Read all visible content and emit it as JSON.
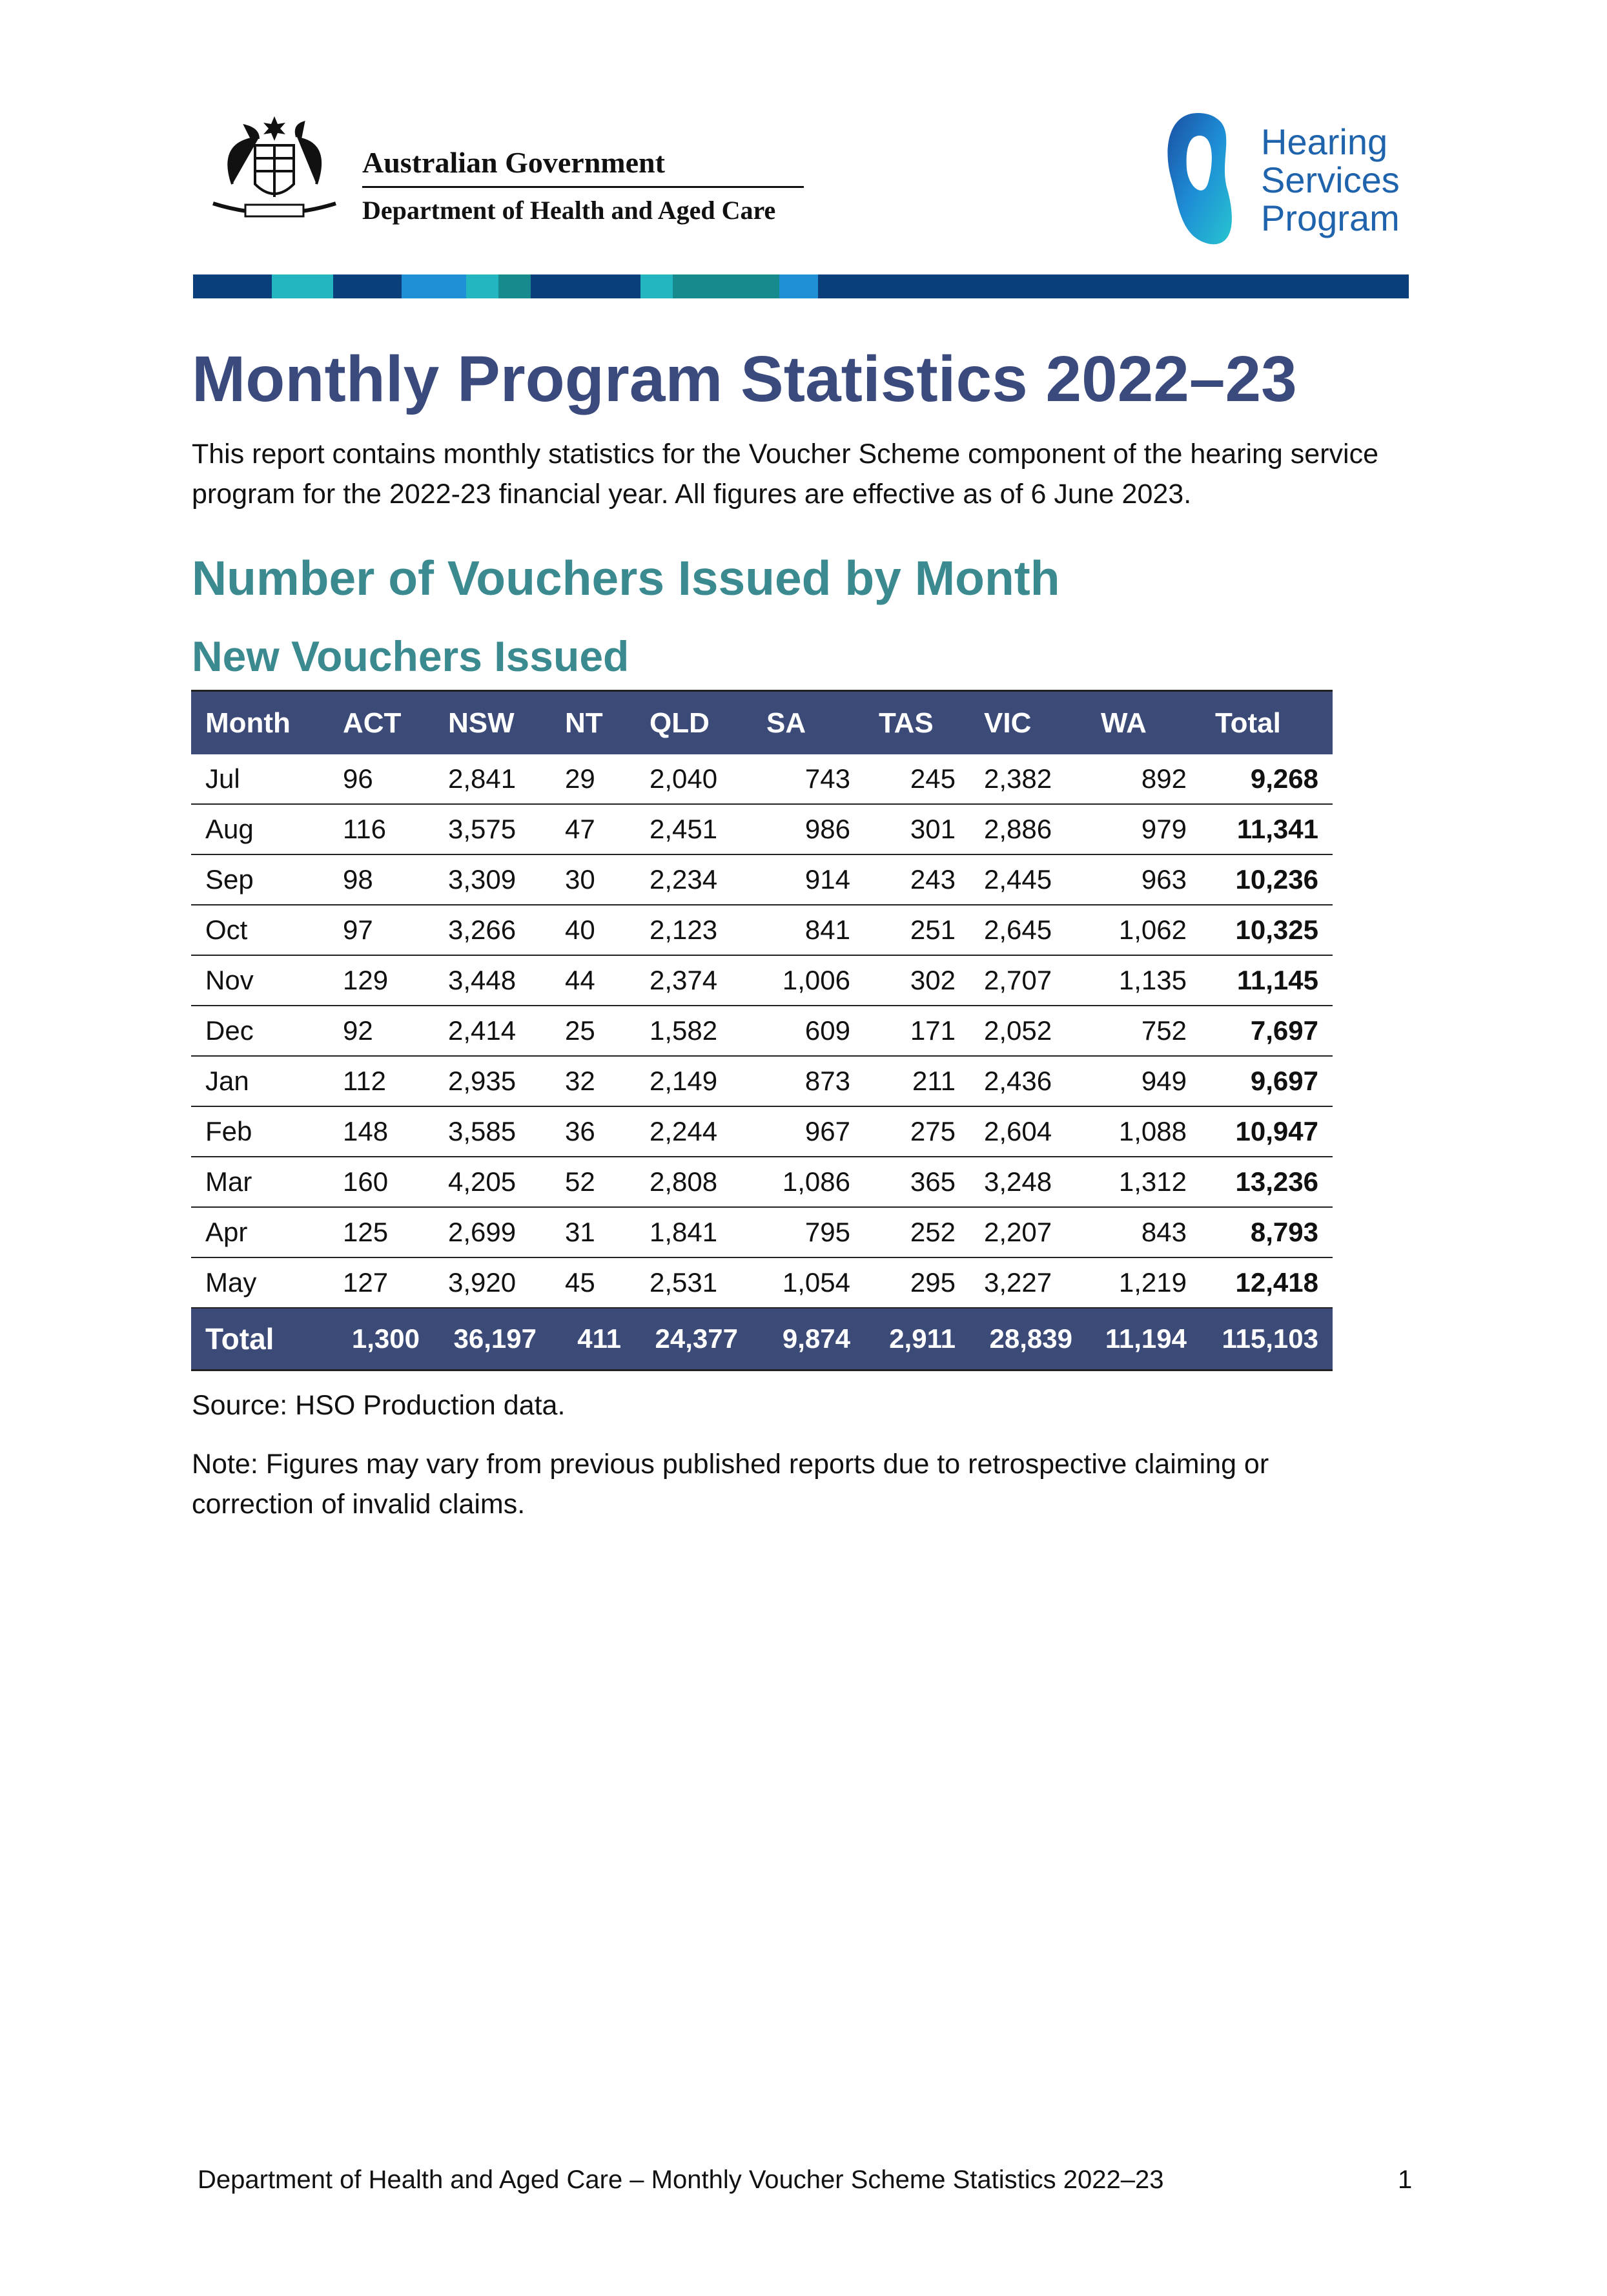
{
  "header": {
    "government": "Australian Government",
    "department": "Department of Health and Aged Care",
    "program_logo": [
      "Hearing",
      "Services",
      "Program"
    ]
  },
  "title": "Monthly Program Statistics 2022–23",
  "intro": "This report contains monthly statistics for the Voucher Scheme component of the hearing service program for the 2022-23 financial year. All figures are effective as of 6 June 2023.",
  "section_heading": "Number of Vouchers Issued by Month",
  "table_heading": "New Vouchers Issued",
  "table": {
    "columns": [
      "Month",
      "ACT",
      "NSW",
      "NT",
      "QLD",
      "SA",
      "TAS",
      "VIC",
      "WA",
      "Total"
    ],
    "rows": [
      [
        "Jul",
        "96",
        "2,841",
        "29",
        "2,040",
        "743",
        "245",
        "2,382",
        "892",
        "9,268"
      ],
      [
        "Aug",
        "116",
        "3,575",
        "47",
        "2,451",
        "986",
        "301",
        "2,886",
        "979",
        "11,341"
      ],
      [
        "Sep",
        "98",
        "3,309",
        "30",
        "2,234",
        "914",
        "243",
        "2,445",
        "963",
        "10,236"
      ],
      [
        "Oct",
        "97",
        "3,266",
        "40",
        "2,123",
        "841",
        "251",
        "2,645",
        "1,062",
        "10,325"
      ],
      [
        "Nov",
        "129",
        "3,448",
        "44",
        "2,374",
        "1,006",
        "302",
        "2,707",
        "1,135",
        "11,145"
      ],
      [
        "Dec",
        "92",
        "2,414",
        "25",
        "1,582",
        "609",
        "171",
        "2,052",
        "752",
        "7,697"
      ],
      [
        "Jan",
        "112",
        "2,935",
        "32",
        "2,149",
        "873",
        "211",
        "2,436",
        "949",
        "9,697"
      ],
      [
        "Feb",
        "148",
        "3,585",
        "36",
        "2,244",
        "967",
        "275",
        "2,604",
        "1,088",
        "10,947"
      ],
      [
        "Mar",
        "160",
        "4,205",
        "52",
        "2,808",
        "1,086",
        "365",
        "3,248",
        "1,312",
        "13,236"
      ],
      [
        "Apr",
        "125",
        "2,699",
        "31",
        "1,841",
        "795",
        "252",
        "2,207",
        "843",
        "8,793"
      ],
      [
        "May",
        "127",
        "3,920",
        "45",
        "2,531",
        "1,054",
        "295",
        "3,227",
        "1,219",
        "12,418"
      ]
    ],
    "total_row": [
      "Total",
      "1,300",
      "36,197",
      "411",
      "24,377",
      "9,874",
      "2,911",
      "28,839",
      "11,194",
      "115,103"
    ]
  },
  "source": "Source: HSO Production data.",
  "note": "Note: Figures may vary from previous published reports due to retrospective claiming or correction of invalid claims.",
  "footer": {
    "text": "Department of Health and Aged Care – Monthly Voucher Scheme Statistics 2022–23",
    "page": "1"
  }
}
